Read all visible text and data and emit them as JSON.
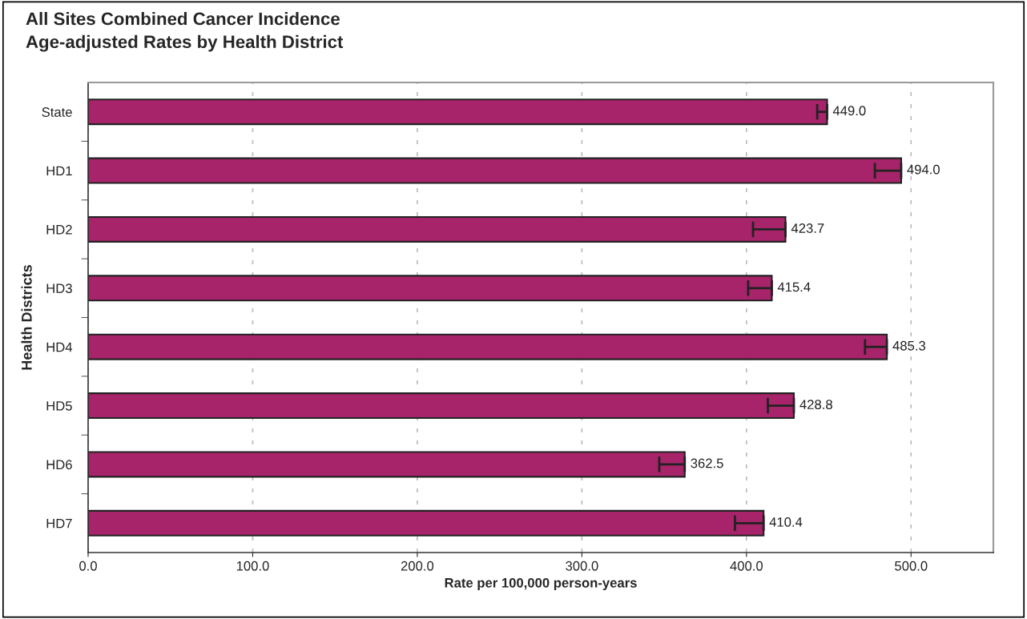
{
  "chart_data": {
    "type": "bar",
    "orientation": "horizontal",
    "title": "All Sites Combined Cancer Incidence\nAge-adjusted Rates by Health District",
    "xlabel": "Rate per 100,000 person-years",
    "ylabel": "Health Districts",
    "categories": [
      "State",
      "HD1",
      "HD2",
      "HD3",
      "HD4",
      "HD5",
      "HD6",
      "HD7"
    ],
    "values": [
      449.0,
      494.0,
      423.7,
      415.4,
      485.3,
      428.8,
      362.5,
      410.4
    ],
    "errors": [
      [
        443,
        449.0
      ],
      [
        478,
        494.0
      ],
      [
        404,
        423.7
      ],
      [
        401,
        415.4
      ],
      [
        472,
        485.3
      ],
      [
        413,
        428.8
      ],
      [
        347,
        362.5
      ],
      [
        393,
        410.4
      ]
    ],
    "value_labels": [
      "449.0",
      "494.0",
      "423.7",
      "415.4",
      "485.3",
      "428.8",
      "362.5",
      "410.4"
    ],
    "color": "#a8246a",
    "xlim": [
      0,
      550
    ],
    "xticks": [
      {
        "value": 0,
        "label": "0.0"
      },
      {
        "value": 100,
        "label": "100.0"
      },
      {
        "value": 200,
        "label": "200.0"
      },
      {
        "value": 300,
        "label": "300.0"
      },
      {
        "value": 400,
        "label": "400.0"
      },
      {
        "value": 500,
        "label": "500.0"
      }
    ],
    "grid": "x",
    "legend": false
  }
}
